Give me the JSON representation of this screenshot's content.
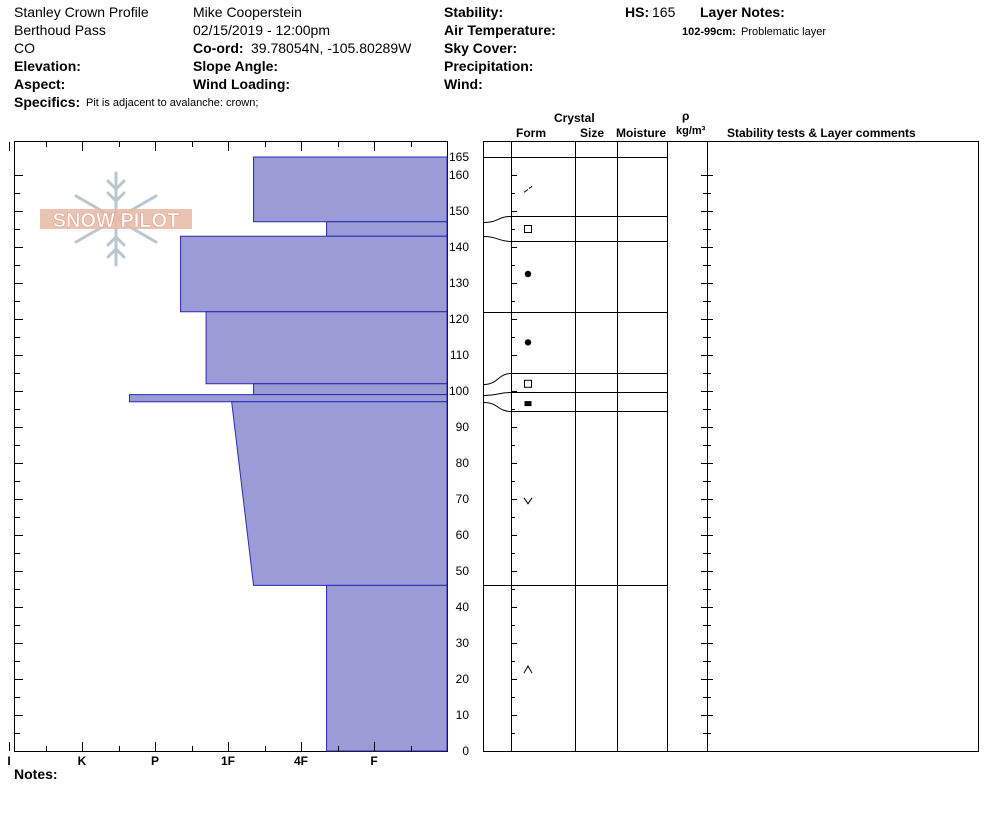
{
  "header": {
    "profile_name": "Stanley Crown Profile",
    "location": "Berthoud Pass",
    "state": "CO",
    "elevation_label": "Elevation:",
    "aspect_label": "Aspect:",
    "specifics_label": "Specifics:",
    "specifics_value": "Pit is adjacent to avalanche: crown;",
    "observer": "Mike Cooperstein",
    "datetime": "02/15/2019 - 12:00pm",
    "coord_label": "Co-ord:",
    "coord_value": "39.78054N, -105.80289W",
    "slope_angle_label": "Slope Angle:",
    "wind_loading_label": "Wind Loading:",
    "stability_label": "Stability:",
    "air_temp_label": "Air Temperature:",
    "sky_cover_label": "Sky Cover:",
    "precipitation_label": "Precipitation:",
    "wind_label": "Wind:",
    "hs_label": "HS:",
    "hs_value": "165",
    "layer_notes_label": "Layer Notes:",
    "layer_note_range": "102-99cm:",
    "layer_note_text": "Problematic layer",
    "notes_label": "Notes:"
  },
  "columns": {
    "crystal": "Crystal",
    "form": "Form",
    "size": "Size",
    "moisture": "Moisture",
    "rho": "ρ",
    "density_unit": "kg/m³",
    "stability_tests": "Stability tests & Layer comments"
  },
  "logo": {
    "text": "SNOW PILOT"
  },
  "colors": {
    "hardness_fill": "#9b9bd7",
    "hardness_stroke": "#2b2bb0",
    "logo": "#e8b9a4",
    "logo_flake": "#bcc6cf"
  },
  "chart_data": {
    "type": "bar",
    "orientation": "horizontal",
    "description_axis": "hand hardness",
    "hardness_scale": [
      "I",
      "K",
      "P",
      "1F",
      "4F",
      "F"
    ],
    "hardness_index": {
      "F": 1,
      "4F": 2,
      "1F": 3,
      "P": 4,
      "K": 5,
      "I": 6
    },
    "height_ticks": [
      0,
      10,
      20,
      30,
      40,
      50,
      60,
      70,
      80,
      90,
      100,
      110,
      120,
      130,
      140,
      150,
      160,
      165
    ],
    "height_range": [
      0,
      165
    ],
    "layers": [
      {
        "top": 165,
        "bottom": 147,
        "hardness_top": 2.65,
        "hardness_bottom": 2.65
      },
      {
        "top": 147,
        "bottom": 143,
        "hardness_top": 1.65,
        "hardness_bottom": 1.65
      },
      {
        "top": 143,
        "bottom": 122,
        "hardness_top": 3.65,
        "hardness_bottom": 3.65
      },
      {
        "top": 122,
        "bottom": 102,
        "hardness_top": 3.3,
        "hardness_bottom": 3.3
      },
      {
        "top": 102,
        "bottom": 99,
        "hardness_top": 2.65,
        "hardness_bottom": 2.65
      },
      {
        "top": 99,
        "bottom": 97,
        "hardness_top": 4.35,
        "hardness_bottom": 4.35
      },
      {
        "top": 97,
        "bottom": 46,
        "hardness_top": 2.95,
        "hardness_bottom": 2.65
      },
      {
        "top": 46,
        "bottom": 0,
        "hardness_top": 1.65,
        "hardness_bottom": 1.65
      }
    ],
    "boundaries": [
      165,
      147,
      143,
      122,
      102,
      99,
      97,
      46
    ],
    "grain_forms": [
      {
        "height": 156,
        "form": "decomposing-fragments"
      },
      {
        "height": 145,
        "form": "faceted-square"
      },
      {
        "height": 132.5,
        "form": "rounded-dot"
      },
      {
        "height": 113.5,
        "form": "rounded-dot"
      },
      {
        "height": 102,
        "form": "faceted-square"
      },
      {
        "height": 96.5,
        "form": "faceted-filled-square"
      },
      {
        "height": 69.5,
        "form": "depth-hoar-cup"
      },
      {
        "height": 22.5,
        "form": "depth-hoar-caret"
      }
    ]
  }
}
